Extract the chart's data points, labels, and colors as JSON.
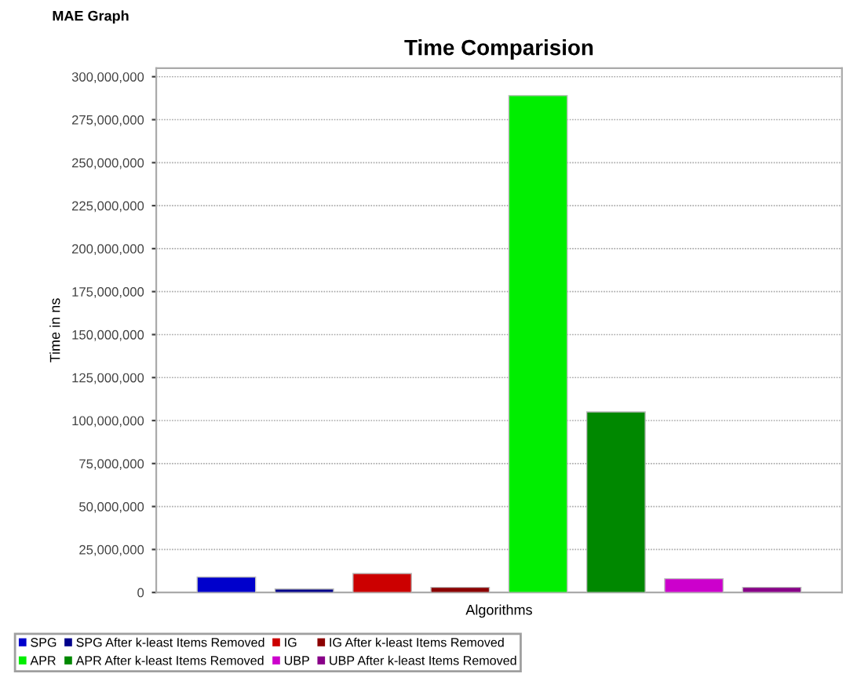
{
  "chart_data": {
    "type": "bar",
    "title": "Time Comparision",
    "xlabel": "Algorithms",
    "ylabel": "Time in ns",
    "annotations": [
      "MAE Graph"
    ],
    "categories": [
      null,
      null,
      null,
      null,
      null,
      null,
      null,
      null
    ],
    "series": [
      {
        "name": "SPG",
        "color": "#0000cc",
        "values": [
          9000000,
          null,
          null,
          null,
          null,
          null,
          null,
          null
        ]
      },
      {
        "name": "SPG After k-least Items Removed",
        "color": "#00008b",
        "values": [
          null,
          2000000,
          null,
          null,
          null,
          null,
          null,
          null
        ]
      },
      {
        "name": "IG",
        "color": "#cc0000",
        "values": [
          null,
          null,
          11000000,
          null,
          null,
          null,
          null,
          null
        ]
      },
      {
        "name": "IG After k-least Items Removed",
        "color": "#8b0000",
        "values": [
          null,
          null,
          null,
          3000000,
          null,
          null,
          null,
          null
        ]
      },
      {
        "name": "APR",
        "color": "#00ee00",
        "values": [
          null,
          null,
          null,
          null,
          289000000,
          null,
          null,
          null
        ]
      },
      {
        "name": "APR After k-least Items Removed",
        "color": "#008800",
        "values": [
          null,
          null,
          null,
          null,
          null,
          105000000,
          null,
          null
        ]
      },
      {
        "name": "UBP",
        "color": "#cc00cc",
        "values": [
          null,
          null,
          null,
          null,
          null,
          null,
          8000000,
          null
        ]
      },
      {
        "name": "UBP After k-least Items Removed",
        "color": "#880088",
        "values": [
          null,
          null,
          null,
          null,
          null,
          null,
          null,
          3000000
        ]
      }
    ],
    "ylim": [
      0,
      305000000
    ],
    "yticks": [
      {
        "value": 0,
        "label": "0"
      },
      {
        "value": 25000000,
        "label": "25,000,000"
      },
      {
        "value": 50000000,
        "label": "50,000,000"
      },
      {
        "value": 75000000,
        "label": "75,000,000"
      },
      {
        "value": 100000000,
        "label": "100,000,000"
      },
      {
        "value": 125000000,
        "label": "125,000,000"
      },
      {
        "value": 150000000,
        "label": "150,000,000"
      },
      {
        "value": 175000000,
        "label": "175,000,000"
      },
      {
        "value": 200000000,
        "label": "200,000,000"
      },
      {
        "value": 225000000,
        "label": "225,000,000"
      },
      {
        "value": 250000000,
        "label": "250,000,000"
      },
      {
        "value": 275000000,
        "label": "275,000,000"
      },
      {
        "value": 300000000,
        "label": "300,000,000"
      }
    ],
    "grid": "y",
    "legend": "bottom"
  }
}
